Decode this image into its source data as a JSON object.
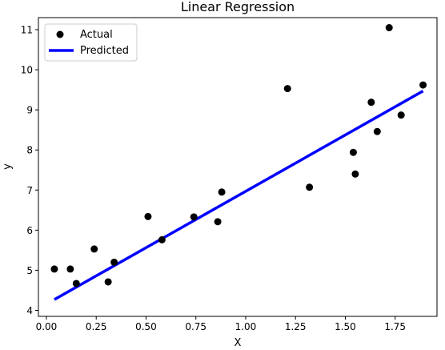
{
  "chart_data": {
    "type": "scatter",
    "title": "Linear Regression",
    "xlabel": "X",
    "ylabel": "y",
    "xlim": [
      -0.04,
      1.96
    ],
    "ylim": [
      3.85,
      11.3
    ],
    "xticks": [
      0.0,
      0.25,
      0.5,
      0.75,
      1.0,
      1.25,
      1.5,
      1.75
    ],
    "xtick_labels": [
      "0.00",
      "0.25",
      "0.50",
      "0.75",
      "1.00",
      "1.25",
      "1.50",
      "1.75"
    ],
    "yticks": [
      4,
      5,
      6,
      7,
      8,
      9,
      10,
      11
    ],
    "ytick_labels": [
      "4",
      "5",
      "6",
      "7",
      "8",
      "9",
      "10",
      "11"
    ],
    "grid": false,
    "legend_position": "top-left",
    "series": [
      {
        "name": "Actual",
        "kind": "scatter",
        "color": "#000000",
        "points": [
          {
            "x": 0.04,
            "y": 5.03
          },
          {
            "x": 0.12,
            "y": 5.03
          },
          {
            "x": 0.15,
            "y": 4.67
          },
          {
            "x": 0.24,
            "y": 5.53
          },
          {
            "x": 0.31,
            "y": 4.71
          },
          {
            "x": 0.34,
            "y": 5.2
          },
          {
            "x": 0.51,
            "y": 6.34
          },
          {
            "x": 0.58,
            "y": 5.76
          },
          {
            "x": 0.74,
            "y": 6.33
          },
          {
            "x": 0.86,
            "y": 6.21
          },
          {
            "x": 0.88,
            "y": 6.95
          },
          {
            "x": 1.21,
            "y": 9.53
          },
          {
            "x": 1.32,
            "y": 7.07
          },
          {
            "x": 1.54,
            "y": 7.94
          },
          {
            "x": 1.55,
            "y": 7.4
          },
          {
            "x": 1.63,
            "y": 9.19
          },
          {
            "x": 1.66,
            "y": 8.46
          },
          {
            "x": 1.72,
            "y": 11.05
          },
          {
            "x": 1.78,
            "y": 8.87
          },
          {
            "x": 1.89,
            "y": 9.62
          }
        ]
      },
      {
        "name": "Predicted",
        "kind": "line",
        "color": "#0000ff",
        "points": [
          {
            "x": 0.04,
            "y": 4.27
          },
          {
            "x": 1.89,
            "y": 9.47
          }
        ]
      }
    ]
  }
}
